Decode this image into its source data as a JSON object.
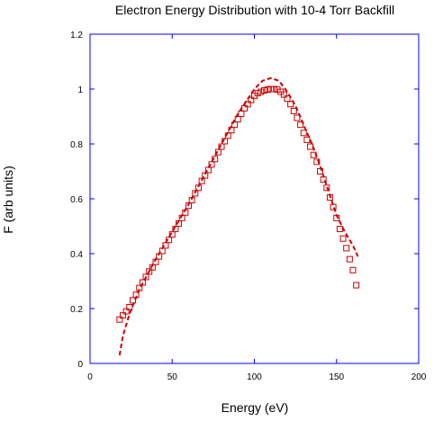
{
  "chart_data": {
    "type": "scatter",
    "title": "Electron Energy Distribution with 10-4 Torr Backfill",
    "xlabel": "Energy (eV)",
    "ylabel": "F (arb units)",
    "xlim": [
      0,
      200
    ],
    "ylim": [
      0,
      1.2
    ],
    "xticks": [
      0,
      50,
      100,
      150,
      200
    ],
    "yticks": [
      0,
      0.2,
      0.4,
      0.6,
      0.8,
      1,
      1.2
    ],
    "xtick_labels": [
      "0",
      "50",
      "100",
      "150",
      "200"
    ],
    "ytick_labels": [
      "0",
      "0.2",
      "0.4",
      "0.6",
      "0.8",
      "1",
      "1.2"
    ],
    "grid": false,
    "frame_color": "#0000ff",
    "series": [
      {
        "style": "markers",
        "marker": "open-square",
        "color": "#cc0000",
        "points": [
          [
            18,
            0.16
          ],
          [
            20,
            0.175
          ],
          [
            22,
            0.19
          ],
          [
            24,
            0.205
          ],
          [
            26,
            0.23
          ],
          [
            28,
            0.25
          ],
          [
            30,
            0.275
          ],
          [
            32,
            0.295
          ],
          [
            34,
            0.315
          ],
          [
            36,
            0.335
          ],
          [
            38,
            0.35
          ],
          [
            40,
            0.37
          ],
          [
            42,
            0.39
          ],
          [
            44,
            0.41
          ],
          [
            46,
            0.43
          ],
          [
            48,
            0.45
          ],
          [
            50,
            0.47
          ],
          [
            52,
            0.49
          ],
          [
            54,
            0.51
          ],
          [
            56,
            0.53
          ],
          [
            58,
            0.55
          ],
          [
            60,
            0.575
          ],
          [
            62,
            0.595
          ],
          [
            64,
            0.62
          ],
          [
            66,
            0.64
          ],
          [
            68,
            0.665
          ],
          [
            70,
            0.685
          ],
          [
            72,
            0.705
          ],
          [
            74,
            0.725
          ],
          [
            76,
            0.745
          ],
          [
            78,
            0.77
          ],
          [
            80,
            0.79
          ],
          [
            82,
            0.81
          ],
          [
            84,
            0.83
          ],
          [
            86,
            0.85
          ],
          [
            88,
            0.87
          ],
          [
            90,
            0.89
          ],
          [
            92,
            0.91
          ],
          [
            94,
            0.93
          ],
          [
            96,
            0.945
          ],
          [
            98,
            0.96
          ],
          [
            100,
            0.975
          ],
          [
            102,
            0.985
          ],
          [
            104,
            0.99
          ],
          [
            106,
            0.995
          ],
          [
            108,
            0.998
          ],
          [
            110,
            1.0
          ],
          [
            112,
            1.0
          ],
          [
            114,
            0.998
          ],
          [
            116,
            0.99
          ],
          [
            118,
            0.98
          ],
          [
            120,
            0.965
          ],
          [
            122,
            0.945
          ],
          [
            124,
            0.92
          ],
          [
            126,
            0.895
          ],
          [
            128,
            0.87
          ],
          [
            130,
            0.84
          ],
          [
            132,
            0.815
          ],
          [
            134,
            0.79
          ],
          [
            136,
            0.76
          ],
          [
            138,
            0.735
          ],
          [
            140,
            0.7
          ],
          [
            142,
            0.67
          ],
          [
            144,
            0.64
          ],
          [
            146,
            0.605
          ],
          [
            148,
            0.57
          ],
          [
            150,
            0.53
          ],
          [
            152,
            0.49
          ],
          [
            154,
            0.455
          ],
          [
            156,
            0.42
          ],
          [
            158,
            0.38
          ],
          [
            160,
            0.34
          ],
          [
            162,
            0.285
          ]
        ]
      },
      {
        "style": "dashed-line",
        "color": "#cc0000",
        "points": [
          [
            18,
            0.03
          ],
          [
            20,
            0.1
          ],
          [
            24,
            0.18
          ],
          [
            30,
            0.27
          ],
          [
            40,
            0.38
          ],
          [
            50,
            0.48
          ],
          [
            60,
            0.58
          ],
          [
            70,
            0.69
          ],
          [
            80,
            0.8
          ],
          [
            90,
            0.91
          ],
          [
            100,
            1.0
          ],
          [
            105,
            1.03
          ],
          [
            110,
            1.04
          ],
          [
            115,
            1.03
          ],
          [
            120,
            0.99
          ],
          [
            125,
            0.94
          ],
          [
            130,
            0.87
          ],
          [
            135,
            0.8
          ],
          [
            140,
            0.72
          ],
          [
            145,
            0.63
          ],
          [
            150,
            0.54
          ],
          [
            155,
            0.48
          ],
          [
            160,
            0.43
          ],
          [
            163,
            0.39
          ]
        ]
      }
    ]
  }
}
